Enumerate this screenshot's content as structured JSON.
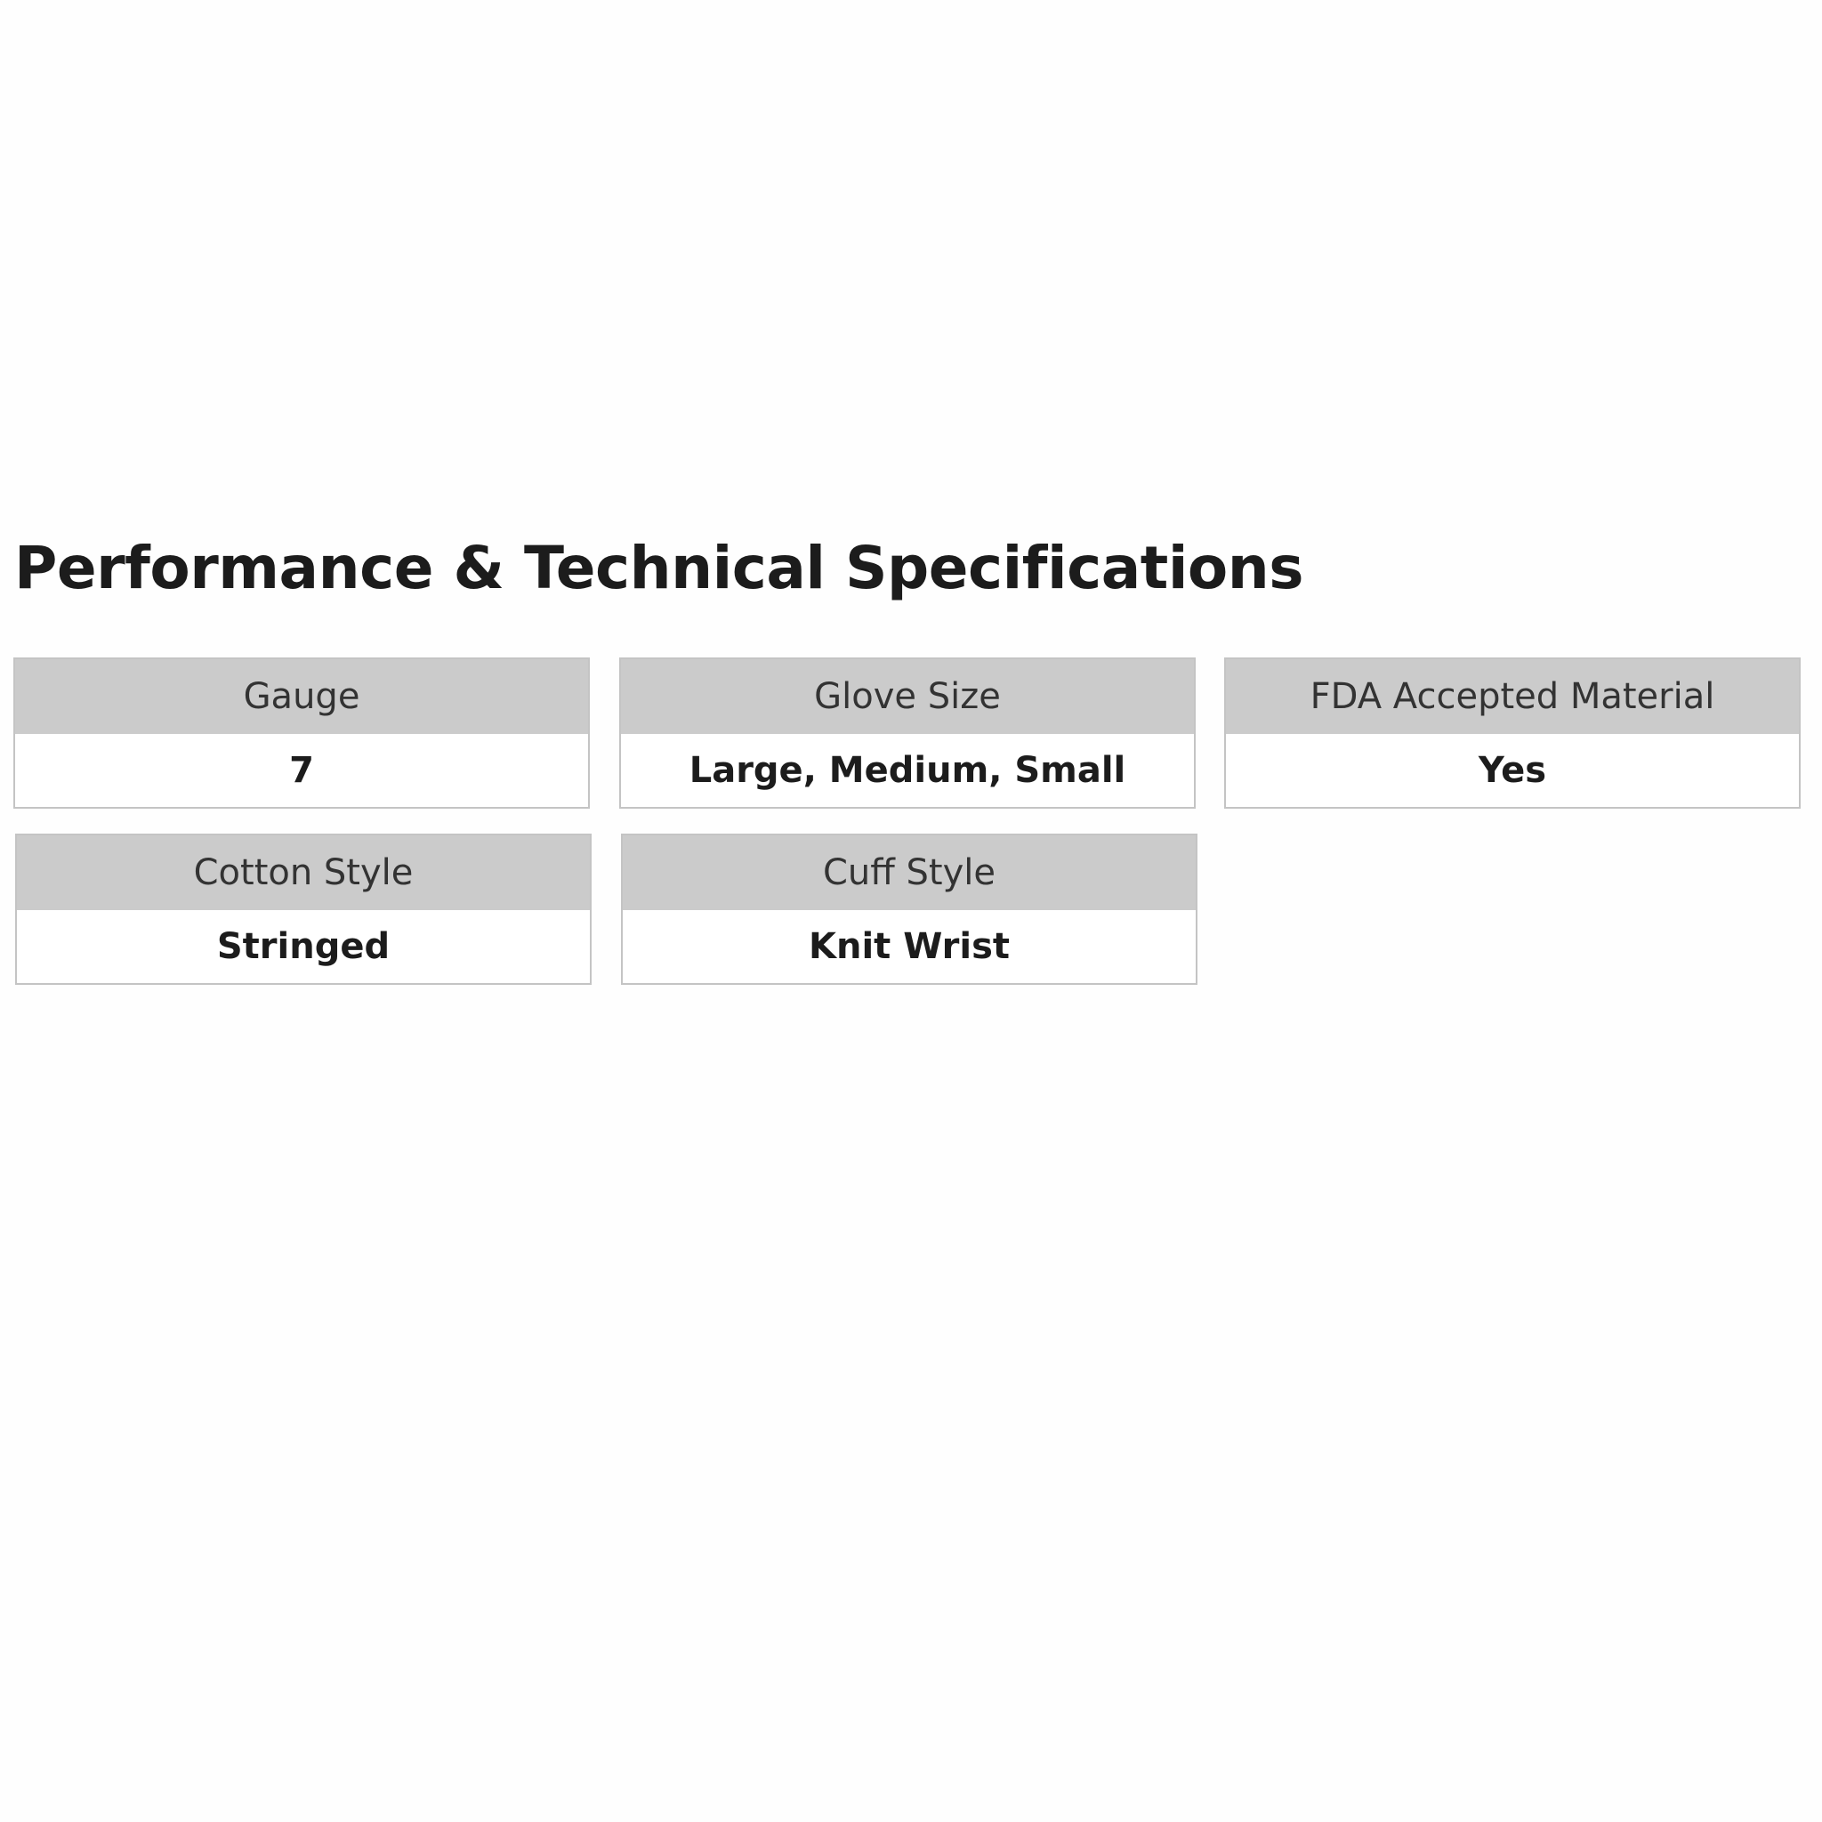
{
  "title": "Performance & Technical Specifications",
  "specs": [
    {
      "label": "Gauge",
      "value": "7"
    },
    {
      "label": "Glove Size",
      "value": "Large, Medium, Small"
    },
    {
      "label": "FDA Accepted Material",
      "value": "Yes"
    },
    {
      "label": "Cotton Style",
      "value": "Stringed"
    },
    {
      "label": "Cuff Style",
      "value": "Knit Wrist"
    }
  ]
}
